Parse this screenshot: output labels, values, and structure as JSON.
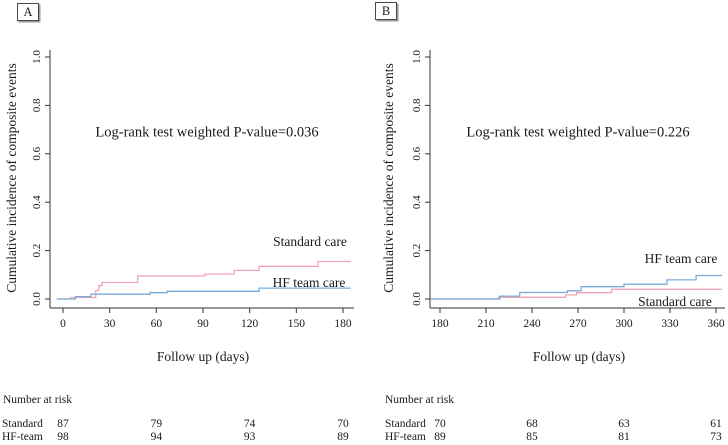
{
  "figure": {
    "axis_color": "#333333",
    "text_color": "#1a1a1a",
    "y_tick_labels": [
      "0.0",
      "0.2",
      "0.4",
      "0.6",
      "0.8",
      "1.0"
    ]
  },
  "panels": [
    {
      "letter": "A",
      "ylabel": "Cumulative incidence of composite events",
      "xlabel": "Follow up (days)",
      "annotation": "Log-rank test weighted P-value=0.036",
      "chart_data": {
        "type": "line",
        "step": true,
        "title": "",
        "xlabel": "Follow up (days)",
        "ylabel": "Cumulative incidence of composite events",
        "xlim": [
          0,
          185
        ],
        "ylim": [
          0,
          1.0
        ],
        "x_ticks": [
          0,
          30,
          60,
          90,
          120,
          150,
          180
        ],
        "y_ticks": [
          "0.0",
          "0.2",
          "0.4",
          "0.6",
          "0.8",
          "1.0"
        ],
        "grid": false,
        "legend_position": "curve-labels",
        "series": [
          {
            "name": "Standard care",
            "color": "#f3a5b3",
            "points": [
              [
                -4,
                0
              ],
              [
                5,
                0.006
              ],
              [
                21,
                0.035
              ],
              [
                23,
                0.055
              ],
              [
                25,
                0.068
              ],
              [
                48,
                0.095
              ],
              [
                91,
                0.103
              ],
              [
                110,
                0.118
              ],
              [
                126,
                0.135
              ],
              [
                164,
                0.155
              ],
              [
                185,
                0.155
              ]
            ]
          },
          {
            "name": "HF team care",
            "color": "#79acdb",
            "points": [
              [
                -4,
                0
              ],
              [
                8,
                0.01
              ],
              [
                18,
                0.02
              ],
              [
                56,
                0.026
              ],
              [
                67,
                0.032
              ],
              [
                126,
                0.045
              ],
              [
                185,
                0.045
              ]
            ]
          }
        ]
      },
      "risk_table": {
        "title": "Number at risk",
        "days": [
          0,
          60,
          120,
          180
        ],
        "rows": [
          {
            "label": "Standard",
            "counts": [
              87,
              79,
              74,
              70
            ]
          },
          {
            "label": "HF-team",
            "counts": [
              98,
              94,
              93,
              89
            ]
          }
        ]
      }
    },
    {
      "letter": "B",
      "ylabel": "Cumulative incidence of composite events",
      "xlabel": "Follow up (days)",
      "annotation": "Log-rank test weighted P-value=0.226",
      "chart_data": {
        "type": "line",
        "step": true,
        "title": "",
        "xlabel": "Follow up (days)",
        "ylabel": "Cumulative incidence of composite events",
        "xlim": [
          174,
          364
        ],
        "ylim": [
          0,
          1.0
        ],
        "x_ticks": [
          180,
          210,
          240,
          270,
          300,
          330,
          360
        ],
        "y_ticks": [
          "0.0",
          "0.2",
          "0.4",
          "0.6",
          "0.8",
          "1.0"
        ],
        "grid": false,
        "legend_position": "curve-labels",
        "series": [
          {
            "name": "Standard care",
            "color": "#f3a5b3",
            "points": [
              [
                174,
                0
              ],
              [
                218,
                0.007
              ],
              [
                262,
                0.017
              ],
              [
                269,
                0.026
              ],
              [
                292,
                0.04
              ],
              [
                364,
                0.04
              ]
            ]
          },
          {
            "name": "HF team care",
            "color": "#79acdb",
            "points": [
              [
                174,
                0
              ],
              [
                219,
                0.012
              ],
              [
                232,
                0.027
              ],
              [
                263,
                0.034
              ],
              [
                272,
                0.051
              ],
              [
                300,
                0.061
              ],
              [
                328,
                0.079
              ],
              [
                347,
                0.097
              ],
              [
                364,
                0.097
              ]
            ]
          }
        ]
      },
      "risk_table": {
        "title": "Number at risk",
        "days": [
          180,
          240,
          300,
          360
        ],
        "rows": [
          {
            "label": "Standard",
            "counts": [
              70,
              68,
              63,
              61
            ]
          },
          {
            "label": "HF-team",
            "counts": [
              89,
              85,
              81,
              73
            ]
          }
        ]
      }
    }
  ]
}
